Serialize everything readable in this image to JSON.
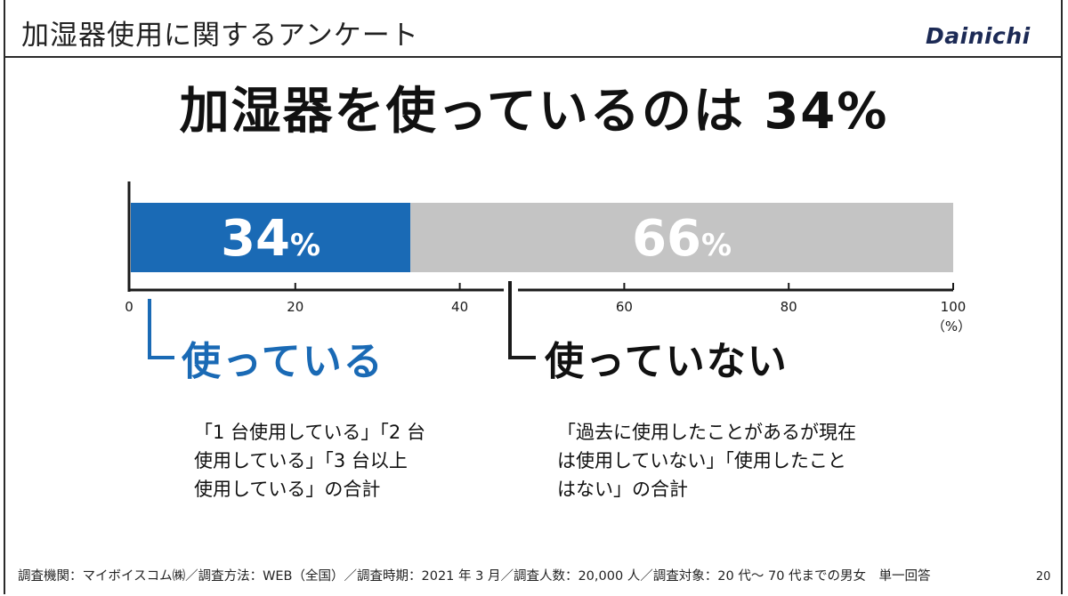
{
  "header": {
    "title": "加湿器使用に関するアンケート",
    "brand": "Dainichi"
  },
  "headline": "加湿器を使っているのは 34%",
  "colors": {
    "used": "#1a6ab5",
    "not_used": "#c4c4c4",
    "axis": "#1a1a1a"
  },
  "chart_data": {
    "type": "bar",
    "orientation": "horizontal",
    "stacked": true,
    "xlim": [
      0,
      100
    ],
    "xunit": "（%）",
    "ticks": [
      0,
      20,
      40,
      60,
      80,
      100
    ],
    "series": [
      {
        "name": "使っている",
        "value": 34,
        "label_number": "34",
        "label_unit": "%",
        "color": "#1a6ab5"
      },
      {
        "name": "使っていない",
        "value": 66,
        "label_number": "66",
        "label_unit": "%",
        "color": "#c4c4c4"
      }
    ]
  },
  "groups": {
    "used": {
      "label": "使っている",
      "note_lines": [
        "「1 台使用している」「2 台",
        "使用している」「3 台以上",
        "使用している」の合計"
      ]
    },
    "unused": {
      "label": "使っていない",
      "note_lines": [
        "「過去に使用したことがあるが現在",
        "は使用していない」「使用したこと",
        "はない」の合計"
      ]
    }
  },
  "footnote": "調査機関：マイボイスコム㈱／調査方法：WEB（全国）／調査時期：2021 年 3 月／調査人数：20,000 人／調査対象：20 代～ 70 代までの男女　単一回答",
  "page_number": "20"
}
